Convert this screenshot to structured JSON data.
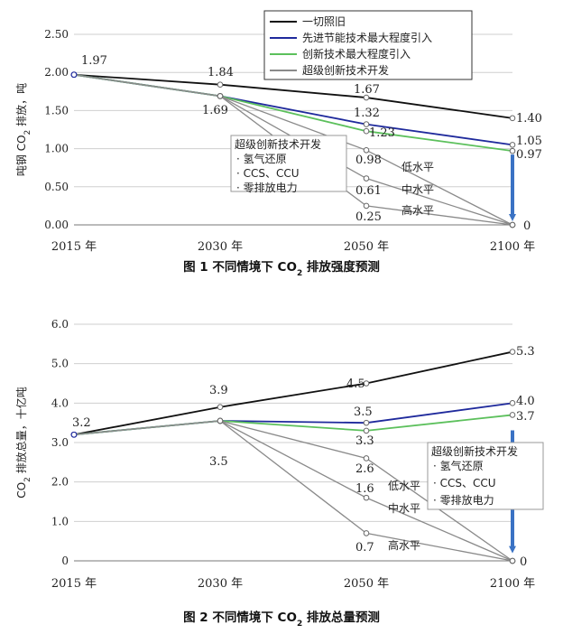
{
  "colors": {
    "baseline": "#111111",
    "energy_saving": "#1f2a9c",
    "innovation": "#5cc05c",
    "super": "#8a8a8a",
    "arrow": "#3a72c4",
    "grid": "#cfcfcf"
  },
  "chart_data": [
    {
      "type": "line",
      "title": "不同情境下 CO2 排放强度预测",
      "caption_label": "图 1",
      "caption_text": "不同情境下 CO",
      "caption_sub": "2",
      "caption_rest": " 排放强度预测",
      "ylabel": "吨钢 CO2 排放，吨",
      "ylabel_parts": [
        "吨钢 CO",
        "2",
        " 排放，吨"
      ],
      "xlabel": "",
      "ylim": [
        0,
        2.5
      ],
      "y_ticks": [
        0,
        0.5,
        1.0,
        1.5,
        2.0,
        2.5
      ],
      "y_tick_labels": [
        "0.00",
        "0.50",
        "1.00",
        "1.50",
        "2.00",
        "2.50"
      ],
      "categories": [
        "2015 年",
        "2030 年",
        "2050 年",
        "2100 年"
      ],
      "series": [
        {
          "name": "一切照旧",
          "color_key": "baseline",
          "values": [
            1.97,
            1.84,
            1.67,
            1.4
          ]
        },
        {
          "name": "先进节能技术最大程度引入",
          "color_key": "energy_saving",
          "values": [
            1.97,
            1.69,
            1.32,
            1.05
          ]
        },
        {
          "name": "创新技术最大程度引入",
          "color_key": "innovation",
          "values": [
            1.97,
            1.69,
            1.23,
            0.97
          ]
        },
        {
          "name": "超级创新技术开发 低水平",
          "color_key": "super",
          "values": [
            1.97,
            1.69,
            0.98,
            0
          ]
        },
        {
          "name": "超级创新技术开发 中水平",
          "color_key": "super",
          "values": [
            1.97,
            1.69,
            0.61,
            0
          ]
        },
        {
          "name": "超级创新技术开发 高水平",
          "color_key": "super",
          "values": [
            1.97,
            1.69,
            0.25,
            0
          ]
        }
      ],
      "legend": [
        "一切照旧",
        "先进节能技术最大程度引入",
        "创新技术最大程度引入",
        "超级创新技术开发"
      ],
      "legend_position": "top-right",
      "data_labels": [
        "1.97",
        "1.84",
        "1.69",
        "1.67",
        "1.32",
        "1.23",
        "0.98",
        "0.61",
        "0.25",
        "1.40",
        "1.05",
        "0.97",
        "0"
      ],
      "level_labels": [
        "低水平",
        "中水平",
        "高水平"
      ],
      "annotation": {
        "title": "超级创新技术开发",
        "items": [
          "氢气还原",
          "CCS、CCU",
          "零排放电力"
        ]
      },
      "grid": true
    },
    {
      "type": "line",
      "title": "不同情境下 CO2 排放总量预测",
      "caption_label": "图 2",
      "caption_text": "不同情境下 CO",
      "caption_sub": "2",
      "caption_rest": " 排放总量预测",
      "ylabel": "CO2 排放总量，十亿吨",
      "ylabel_parts": [
        "CO",
        "2",
        " 排放总量，十亿吨"
      ],
      "xlabel": "",
      "ylim": [
        0,
        6.0
      ],
      "y_ticks": [
        0,
        1.0,
        2.0,
        3.0,
        4.0,
        5.0,
        6.0
      ],
      "y_tick_labels": [
        "0",
        "1.0",
        "2.0",
        "3.0",
        "4.0",
        "5.0",
        "6.0"
      ],
      "categories": [
        "2015 年",
        "2030 年",
        "2050 年",
        "2100 年"
      ],
      "series": [
        {
          "name": "一切照旧",
          "color_key": "baseline",
          "values": [
            3.2,
            3.9,
            4.5,
            5.3
          ]
        },
        {
          "name": "先进节能技术最大程度引入",
          "color_key": "energy_saving",
          "values": [
            3.2,
            3.55,
            3.5,
            4.0
          ]
        },
        {
          "name": "创新技术最大程度引入",
          "color_key": "innovation",
          "values": [
            3.2,
            3.55,
            3.3,
            3.7
          ]
        },
        {
          "name": "超级创新技术开发 低水平",
          "color_key": "super",
          "values": [
            3.2,
            3.55,
            2.6,
            0
          ]
        },
        {
          "name": "超级创新技术开发 中水平",
          "color_key": "super",
          "values": [
            3.2,
            3.55,
            1.6,
            0
          ]
        },
        {
          "name": "超级创新技术开发 高水平",
          "color_key": "super",
          "values": [
            3.2,
            3.55,
            0.7,
            0
          ]
        }
      ],
      "data_labels": [
        "3.2",
        "3.9",
        "3.5",
        "4.5",
        "3.5",
        "3.3",
        "2.6",
        "1.6",
        "0.7",
        "5.3",
        "4.0",
        "3.7",
        "0"
      ],
      "level_labels": [
        "低水平",
        "中水平",
        "高水平"
      ],
      "annotation": {
        "title": "超级创新技术开发",
        "items": [
          "氢气还原",
          "CCS、CCU",
          "零排放电力"
        ]
      },
      "grid": true
    }
  ]
}
